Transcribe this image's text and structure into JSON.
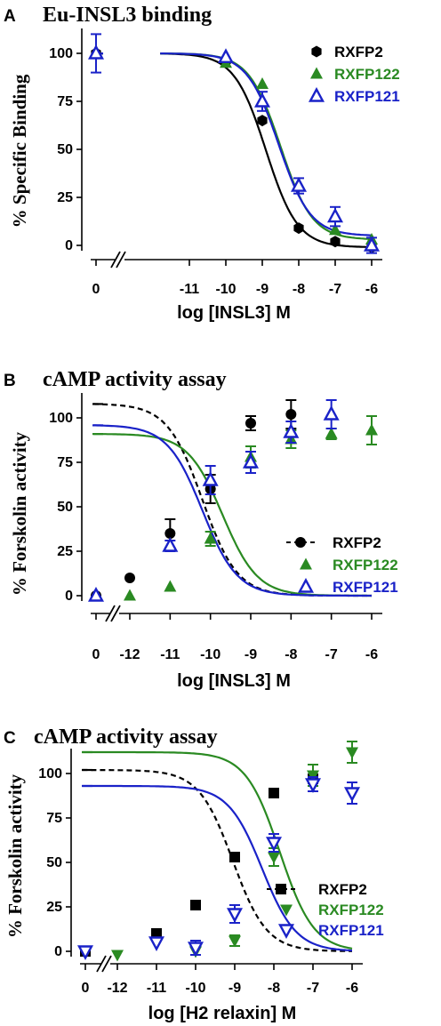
{
  "chart_data": [
    {
      "panel": "A",
      "type": "line",
      "title": "Eu-INSL3 binding",
      "xlabel": "log [INSL3] M",
      "ylabel": "% Specific Binding",
      "xticks": [
        "0",
        "-11",
        "-10",
        "-9",
        "-8",
        "-7",
        "-6"
      ],
      "yticks": [
        "0",
        "25",
        "50",
        "75",
        "100"
      ],
      "xlim": [
        -12,
        -6
      ],
      "ylim": [
        0,
        120
      ],
      "legend_position": "top-right",
      "series": [
        {
          "name": "RXFP2",
          "color": "#000000",
          "marker": "hexagon",
          "dashed": false,
          "x": [
            0,
            -10,
            -9,
            -8,
            -7,
            -6
          ],
          "y": [
            100,
            96,
            65,
            9,
            2,
            -1
          ],
          "err": [
            0,
            0,
            0,
            0,
            0,
            0
          ],
          "fit": {
            "bottom": -1,
            "top": 100,
            "logEC50": -8.9
          }
        },
        {
          "name": "RXFP122",
          "color": "#2a8a22",
          "marker": "triangle",
          "dashed": false,
          "x": [
            0,
            -10,
            -9,
            -8,
            -7,
            -6
          ],
          "y": [
            100,
            95,
            84,
            32,
            8,
            3
          ],
          "err": [
            0,
            0,
            0,
            0,
            0,
            0
          ],
          "fit": {
            "bottom": 3,
            "top": 100,
            "logEC50": -8.5
          }
        },
        {
          "name": "RXFP121",
          "color": "#1a22c8",
          "marker": "triangle-open",
          "dashed": false,
          "x": [
            0,
            -10,
            -9,
            -8,
            -7,
            -6
          ],
          "y": [
            100,
            98,
            75,
            31,
            15,
            0
          ],
          "err": [
            10,
            0,
            5,
            4,
            5,
            4
          ],
          "fit": {
            "bottom": 5,
            "top": 100,
            "logEC50": -8.55
          }
        }
      ]
    },
    {
      "panel": "B",
      "type": "line",
      "title": "cAMP activity assay",
      "xlabel": "log [INSL3] M",
      "ylabel": "% Forskolin activity",
      "xticks": [
        "0",
        "-12",
        "-11",
        "-10",
        "-9",
        "-8",
        "-7",
        "-6"
      ],
      "yticks": [
        "0",
        "25",
        "50",
        "75",
        "100"
      ],
      "xlim": [
        -12.8,
        -6
      ],
      "ylim": [
        0,
        120
      ],
      "legend_position": "right",
      "series": [
        {
          "name": "RXFP2",
          "color": "#000000",
          "marker": "circle",
          "dashed": true,
          "x": [
            0,
            -12,
            -11,
            -10,
            -9,
            -8
          ],
          "y": [
            0,
            10,
            35,
            60,
            97,
            102
          ],
          "err": [
            0,
            0,
            8,
            8,
            4,
            8
          ],
          "fit": {
            "bottom": 0,
            "top": 108,
            "logEC50": -10.2
          }
        },
        {
          "name": "RXFP122",
          "color": "#2a8a22",
          "marker": "triangle",
          "dashed": false,
          "x": [
            0,
            -12,
            -11,
            -10,
            -9,
            -8,
            -7,
            -6
          ],
          "y": [
            0,
            0,
            5,
            32,
            78,
            88,
            91,
            93
          ],
          "err": [
            0,
            0,
            0,
            4,
            6,
            5,
            3,
            8
          ],
          "fit": {
            "bottom": 0,
            "top": 91,
            "logEC50": -9.7
          }
        },
        {
          "name": "RXFP121",
          "color": "#1a22c8",
          "marker": "triangle-open",
          "dashed": false,
          "x": [
            0,
            -11,
            -10,
            -9,
            -8,
            -7
          ],
          "y": [
            0,
            28,
            65,
            75,
            92,
            102
          ],
          "err": [
            0,
            3,
            8,
            6,
            6,
            8
          ],
          "fit": {
            "bottom": 0,
            "top": 96,
            "logEC50": -10.2
          }
        }
      ]
    },
    {
      "panel": "C",
      "type": "line",
      "title": "cAMP activity assay",
      "xlabel": "log [H2 relaxin] M",
      "ylabel": "% Forskolin activity",
      "xticks": [
        "0",
        "-12",
        "-11",
        "-10",
        "-9",
        "-8",
        "-7",
        "-6"
      ],
      "yticks": [
        "0",
        "25",
        "50",
        "75",
        "100"
      ],
      "xlim": [
        -12.8,
        -5.6
      ],
      "ylim": [
        0,
        125
      ],
      "legend_position": "right",
      "series": [
        {
          "name": "RXFP2",
          "color": "#000000",
          "marker": "square",
          "dashed": true,
          "x": [
            0,
            -11,
            -10,
            -9,
            -8,
            -7
          ],
          "y": [
            0,
            10,
            26,
            53,
            89,
            97
          ],
          "err": [
            0,
            0,
            0,
            0,
            0,
            0
          ],
          "fit": {
            "bottom": 0,
            "top": 102,
            "logEC50": -9.05
          }
        },
        {
          "name": "RXFP122",
          "color": "#2a8a22",
          "marker": "triangle-down",
          "dashed": false,
          "x": [
            0,
            -12,
            -10,
            -9,
            -8,
            -7,
            -6
          ],
          "y": [
            0,
            -2,
            0,
            6,
            53,
            99,
            112
          ],
          "err": [
            0,
            0,
            0,
            3,
            5,
            6,
            6
          ],
          "fit": {
            "bottom": 0,
            "top": 112,
            "logEC50": -7.85
          }
        },
        {
          "name": "RXFP121",
          "color": "#1a22c8",
          "marker": "triangle-down-open",
          "dashed": false,
          "x": [
            0,
            -11,
            -10,
            -9,
            -8,
            -7,
            -6
          ],
          "y": [
            0,
            5,
            2,
            21,
            61,
            94,
            89
          ],
          "err": [
            0,
            0,
            4,
            5,
            5,
            4,
            6
          ],
          "fit": {
            "bottom": 0,
            "top": 93,
            "logEC50": -8.3
          }
        }
      ]
    }
  ]
}
